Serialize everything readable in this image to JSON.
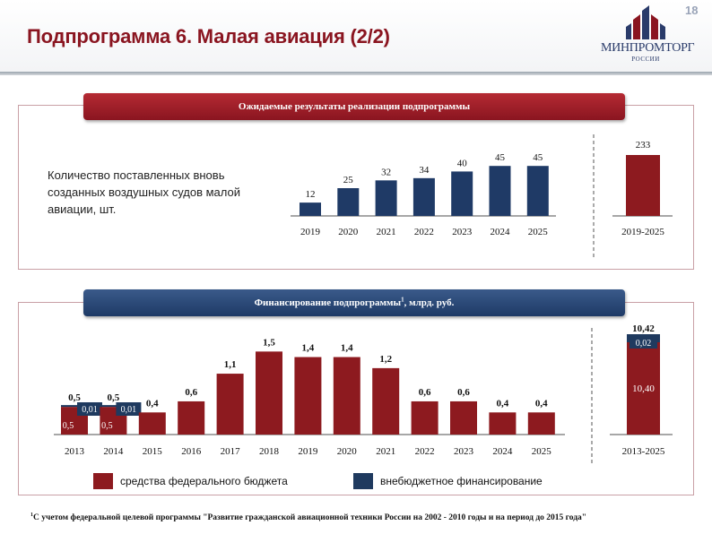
{
  "header": {
    "title": "Подпрограмма 6. Малая авиация (2/2)",
    "page_number": "18",
    "logo_name": "МИНПРОМТОРГ",
    "logo_sub": "РОССИИ"
  },
  "colors": {
    "brand_red": "#8a1520",
    "brand_blue": "#1e3a66",
    "federal_bar": "#8d1a1f",
    "extra_bar": "#1f3a5f",
    "results_bar": "#1f3a66"
  },
  "results": {
    "banner": "Ожидаемые результаты реализации подпрограммы",
    "description": "Количество поставленных вновь созданных воздушных судов малой авиации, шт.",
    "chart_data": {
      "type": "bar",
      "title": "Количество поставленных вновь созданных воздушных судов малой авиации, шт.",
      "categories": [
        "2019",
        "2020",
        "2021",
        "2022",
        "2023",
        "2024",
        "2025"
      ],
      "values": [
        12,
        25,
        32,
        34,
        40,
        45,
        45
      ],
      "value_labels": [
        "12",
        "25",
        "32",
        "34",
        "40",
        "45",
        "45"
      ],
      "ylim": [
        0,
        50
      ],
      "total": {
        "category": "2019-2025",
        "value": 233,
        "label": "233"
      }
    }
  },
  "financing": {
    "banner_text": "Финансирование подпрограммы",
    "banner_sup": "1",
    "banner_unit": ", млрд. руб.",
    "chart_data": {
      "type": "bar",
      "title": "Финансирование подпрограммы, млрд. руб.",
      "categories": [
        "2013",
        "2014",
        "2015",
        "2016",
        "2017",
        "2018",
        "2019",
        "2020",
        "2021",
        "2022",
        "2023",
        "2024",
        "2025"
      ],
      "series": [
        {
          "name": "средства федерального бюджета",
          "values": [
            0.5,
            0.5,
            0.4,
            0.6,
            1.1,
            1.5,
            1.4,
            1.4,
            1.2,
            0.6,
            0.6,
            0.4,
            0.4
          ]
        },
        {
          "name": "внебюджетное финансирование",
          "values": [
            0.01,
            0.01,
            0,
            0,
            0,
            0,
            0,
            0,
            0,
            0,
            0,
            0,
            0
          ]
        }
      ],
      "top_labels": [
        "0,5",
        "0,5",
        "0,4",
        "0,6",
        "1,1",
        "1,5",
        "1,4",
        "1,4",
        "1,2",
        "0,6",
        "0,6",
        "0,4",
        "0,4"
      ],
      "federal_inner_labels": [
        "0,5",
        "0,5"
      ],
      "extra_labels": [
        "0,01",
        "0,01"
      ],
      "ylim": [
        0,
        1.7
      ],
      "total": {
        "category": "2013-2025",
        "total_label": "10,42",
        "federal": 10.4,
        "federal_label": "10,40",
        "extra": 0.02,
        "extra_label": "0,02"
      }
    },
    "legend": [
      {
        "label": "средства федерального бюджета"
      },
      {
        "label": "внебюджетное финансирование"
      }
    ]
  },
  "footnote": {
    "sup": "1",
    "text": "С учетом федеральной целевой программы \"Развитие гражданской авиационной техники России на 2002 - 2010 годы и на период до 2015 года\""
  }
}
